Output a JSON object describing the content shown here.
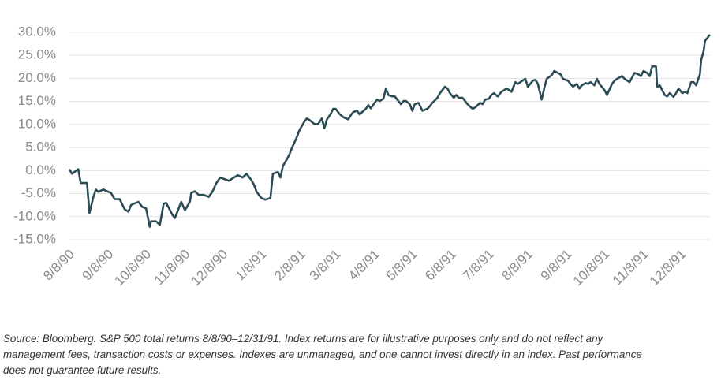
{
  "chart_data": {
    "type": "line",
    "x": [
      "8/8/90",
      "8/10/90",
      "8/15/90",
      "8/17/90",
      "8/22/90",
      "8/24/90",
      "8/27/90",
      "8/29/90",
      "8/31/90",
      "9/4/90",
      "9/7/90",
      "9/10/90",
      "9/13/90",
      "9/17/90",
      "9/21/90",
      "9/24/90",
      "9/26/90",
      "9/28/90",
      "10/2/90",
      "10/5/90",
      "10/8/90",
      "10/11/90",
      "10/12/90",
      "10/16/90",
      "10/19/90",
      "10/22/90",
      "10/24/90",
      "10/29/90",
      "10/31/90",
      "11/2/90",
      "11/5/90",
      "11/8/90",
      "11/12/90",
      "11/13/90",
      "11/16/90",
      "11/19/90",
      "11/23/90",
      "11/27/90",
      "11/30/90",
      "12/3/90",
      "12/6/90",
      "12/10/90",
      "12/13/90",
      "12/17/90",
      "12/20/90",
      "12/24/90",
      "12/27/90",
      "12/31/90",
      "1/2/91",
      "1/4/91",
      "1/8/91",
      "1/11/91",
      "1/15/91",
      "1/17/91",
      "1/21/91",
      "1/23/91",
      "1/25/91",
      "1/28/91",
      "1/30/91",
      "2/1/91",
      "2/5/91",
      "2/7/91",
      "2/11/91",
      "2/13/91",
      "2/15/91",
      "2/19/91",
      "2/22/91",
      "2/25/91",
      "2/27/91",
      "3/1/91",
      "3/4/91",
      "3/6/91",
      "3/8/91",
      "3/11/91",
      "3/14/91",
      "3/18/91",
      "3/20/91",
      "3/22/91",
      "3/25/91",
      "3/27/91",
      "4/1/91",
      "4/3/91",
      "4/5/91",
      "4/8/91",
      "4/10/91",
      "4/12/91",
      "4/15/91",
      "4/17/91",
      "4/19/91",
      "4/22/91",
      "4/24/91",
      "4/29/91",
      "5/1/91",
      "5/3/91",
      "5/6/91",
      "5/8/91",
      "5/10/91",
      "5/13/91",
      "5/16/91",
      "5/20/91",
      "5/22/91",
      "5/24/91",
      "5/28/91",
      "5/30/91",
      "6/3/91",
      "6/5/91",
      "6/7/91",
      "6/10/91",
      "6/12/91",
      "6/14/91",
      "6/17/91",
      "6/19/91",
      "6/21/91",
      "6/25/91",
      "6/27/91",
      "7/1/91",
      "7/3/91",
      "7/5/91",
      "7/8/91",
      "7/10/91",
      "7/12/91",
      "7/15/91",
      "7/18/91",
      "7/22/91",
      "7/24/91",
      "7/26/91",
      "7/29/91",
      "7/31/91",
      "8/2/91",
      "8/6/91",
      "8/8/91",
      "8/12/91",
      "8/14/91",
      "8/16/91",
      "8/19/91",
      "8/21/91",
      "8/23/91",
      "8/27/91",
      "8/29/91",
      "9/3/91",
      "9/5/91",
      "9/9/91",
      "9/11/91",
      "9/13/91",
      "9/16/91",
      "9/18/91",
      "9/20/91",
      "9/23/91",
      "9/25/91",
      "9/27/91",
      "9/30/91",
      "10/2/91",
      "10/4/91",
      "10/8/91",
      "10/10/91",
      "10/14/91",
      "10/16/91",
      "10/18/91",
      "10/22/91",
      "10/24/91",
      "10/28/91",
      "10/30/91",
      "11/1/91",
      "11/4/91",
      "11/6/91",
      "11/8/91",
      "11/11/91",
      "11/13/91",
      "11/15/91",
      "11/18/91",
      "11/19/91",
      "11/21/91",
      "11/25/91",
      "11/27/91",
      "11/29/91",
      "12/2/91",
      "12/4/91",
      "12/6/91",
      "12/9/91",
      "12/11/91",
      "12/13/91",
      "12/16/91",
      "12/18/91",
      "12/20/91",
      "12/23/91",
      "12/24/91",
      "12/26/91",
      "12/27/91",
      "12/31/91"
    ],
    "values": [
      0.3,
      -0.7,
      0.3,
      -2.7,
      -2.7,
      -9.2,
      -5.8,
      -4.1,
      -4.6,
      -4.1,
      -4.5,
      -4.8,
      -6.2,
      -6.2,
      -8.4,
      -8.9,
      -7.5,
      -7.2,
      -6.8,
      -7.9,
      -8.2,
      -12.2,
      -11.0,
      -11.0,
      -11.8,
      -7.2,
      -7.0,
      -9.6,
      -10.3,
      -8.9,
      -6.8,
      -8.6,
      -6.7,
      -4.8,
      -4.5,
      -5.3,
      -5.3,
      -5.7,
      -4.5,
      -2.7,
      -1.5,
      -1.9,
      -2.2,
      -1.5,
      -1.0,
      -1.5,
      -0.7,
      -2.1,
      -3.1,
      -4.6,
      -6.0,
      -6.3,
      -6.0,
      -0.7,
      -0.3,
      -1.5,
      1.0,
      2.4,
      3.4,
      4.8,
      7.2,
      8.7,
      10.6,
      11.3,
      11.0,
      10.1,
      10.1,
      11.3,
      9.2,
      11.1,
      12.3,
      13.4,
      13.4,
      12.3,
      11.6,
      11.1,
      12.0,
      12.7,
      13.0,
      12.2,
      13.4,
      14.2,
      13.5,
      14.7,
      15.4,
      15.1,
      15.6,
      17.8,
      16.4,
      16.1,
      16.1,
      14.4,
      15.1,
      15.1,
      14.4,
      13.0,
      14.4,
      14.7,
      13.0,
      13.4,
      14.0,
      14.7,
      15.8,
      16.8,
      18.2,
      17.8,
      16.8,
      15.8,
      16.4,
      15.8,
      15.8,
      15.1,
      14.4,
      13.4,
      13.7,
      14.7,
      14.4,
      15.4,
      15.6,
      16.4,
      16.8,
      16.1,
      17.1,
      17.8,
      17.5,
      17.1,
      19.2,
      18.8,
      19.2,
      19.9,
      18.2,
      19.5,
      19.7,
      18.8,
      15.4,
      17.8,
      19.9,
      20.7,
      21.6,
      20.9,
      19.9,
      19.5,
      18.8,
      18.2,
      18.8,
      17.8,
      18.5,
      19.0,
      18.8,
      19.2,
      18.5,
      19.9,
      18.8,
      17.5,
      16.4,
      18.8,
      19.5,
      19.9,
      20.5,
      19.9,
      19.2,
      20.2,
      21.2,
      20.9,
      20.5,
      21.6,
      21.2,
      20.5,
      22.6,
      22.6,
      18.2,
      18.5,
      16.4,
      16.1,
      16.8,
      16.0,
      16.8,
      17.8,
      16.8,
      17.1,
      16.8,
      19.2,
      19.2,
      18.5,
      20.9,
      24.0,
      26.0,
      28.1,
      29.5
    ],
    "color": "#2b4c55",
    "xlim": [
      "8/8/90",
      "12/31/91"
    ],
    "xticks": [
      "8/8/90",
      "9/8/90",
      "10/8/90",
      "11/8/90",
      "12/8/90",
      "1/8/91",
      "2/8/91",
      "3/8/91",
      "4/8/91",
      "5/8/91",
      "6/8/91",
      "7/8/91",
      "8/8/91",
      "9/8/91",
      "10/8/91",
      "11/8/91",
      "12/8/91"
    ],
    "ylim": [
      -15,
      30
    ],
    "yticks": [
      {
        "value": -15,
        "label": "-15.0%"
      },
      {
        "value": -10,
        "label": "-10.0%"
      },
      {
        "value": -5,
        "label": "-5.0%"
      },
      {
        "value": 0,
        "label": "0.0%"
      },
      {
        "value": 5,
        "label": "5.0%"
      },
      {
        "value": 10,
        "label": "10.0%"
      },
      {
        "value": 15,
        "label": "15.0%"
      },
      {
        "value": 20,
        "label": "20.0%"
      },
      {
        "value": 25,
        "label": "25.0%"
      },
      {
        "value": 30,
        "label": "30.0%"
      }
    ],
    "grid": true,
    "footnote": [
      "Source: Bloomberg. S&P 500 total returns 8/8/90–12/31/91. Index returns are for illustrative purposes only and do not reflect any",
      "management fees, transaction costs or expenses. Indexes are unmanaged, and one cannot invest directly in an index. Past performance",
      "does not guarantee future results."
    ]
  }
}
